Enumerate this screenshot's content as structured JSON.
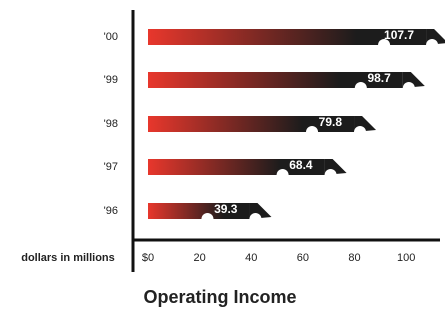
{
  "chart_data": {
    "type": "bar",
    "orientation": "horizontal",
    "title": "Operating Income",
    "x_label": "dollars in millions",
    "categories": [
      "'00",
      "'99",
      "'98",
      "'97",
      "'96"
    ],
    "values": [
      107.7,
      98.7,
      79.8,
      68.4,
      39.3
    ],
    "gradient": [
      "#e8372c",
      "#1c1c1c"
    ],
    "xlim": [
      0,
      110
    ],
    "xticks": [
      {
        "value": 0,
        "label": "$0"
      },
      20,
      40,
      60,
      80,
      100
    ]
  }
}
